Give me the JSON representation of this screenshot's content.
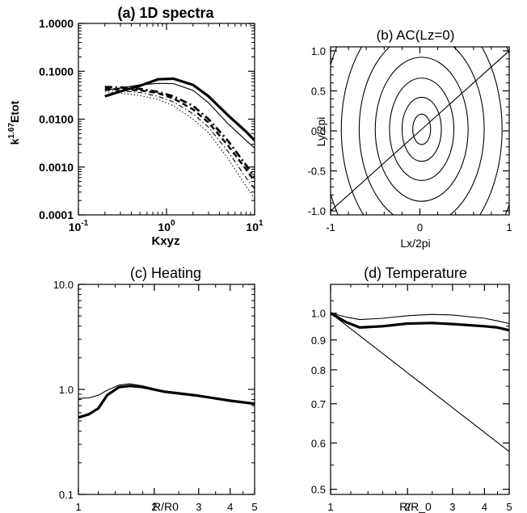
{
  "chart_data": [
    {
      "id": "a",
      "type": "line",
      "title": "(a) 1D spectra",
      "xlabel": "Kxyz",
      "ylabel_base": "k",
      "ylabel_sup": "1.67",
      "ylabel_tail": "Etot",
      "xscale": "log",
      "yscale": "log",
      "xlim": [
        0.1,
        10
      ],
      "ylim": [
        0.0001,
        1.0
      ],
      "xticks": [
        {
          "v": 0.1,
          "base": "10",
          "exp": "-1"
        },
        {
          "v": 1,
          "base": "10",
          "exp": "0"
        },
        {
          "v": 10,
          "base": "10",
          "exp": "1"
        }
      ],
      "yticks": [
        {
          "v": 1.0,
          "label": "1.0000"
        },
        {
          "v": 0.1,
          "label": "0.1000"
        },
        {
          "v": 0.01,
          "label": "0.0100"
        },
        {
          "v": 0.001,
          "label": "0.0010"
        },
        {
          "v": 0.0001,
          "label": "0.0001"
        }
      ],
      "series": [
        {
          "style": "solid-thick",
          "x": [
            0.2,
            0.3,
            0.5,
            0.8,
            1.2,
            2,
            3,
            5,
            8,
            10
          ],
          "y": [
            0.03,
            0.038,
            0.05,
            0.068,
            0.07,
            0.052,
            0.03,
            0.012,
            0.0055,
            0.0036
          ]
        },
        {
          "style": "solid-thin",
          "x": [
            0.2,
            0.3,
            0.5,
            0.8,
            1.2,
            2,
            3,
            5,
            8,
            10
          ],
          "y": [
            0.04,
            0.045,
            0.052,
            0.056,
            0.055,
            0.04,
            0.022,
            0.008,
            0.0036,
            0.0025
          ]
        },
        {
          "style": "dashdot-thick",
          "x": [
            0.2,
            0.3,
            0.5,
            0.8,
            1.2,
            2,
            3,
            5,
            8,
            10
          ],
          "y": [
            0.047,
            0.046,
            0.043,
            0.037,
            0.03,
            0.019,
            0.01,
            0.0035,
            0.0011,
            0.0006
          ]
        },
        {
          "style": "dashed-thick",
          "x": [
            0.2,
            0.3,
            0.5,
            0.8,
            1.2,
            2,
            3,
            5,
            8,
            10
          ],
          "y": [
            0.043,
            0.042,
            0.04,
            0.035,
            0.027,
            0.016,
            0.0085,
            0.0028,
            0.0009,
            0.0005
          ]
        },
        {
          "style": "dashdot-thin",
          "x": [
            0.2,
            0.3,
            0.5,
            0.8,
            1.2,
            2,
            3,
            5,
            8,
            10
          ],
          "y": [
            0.04,
            0.039,
            0.036,
            0.03,
            0.023,
            0.013,
            0.0068,
            0.0021,
            0.0006,
            0.00035
          ]
        },
        {
          "style": "dotted-thin",
          "x": [
            0.2,
            0.3,
            0.5,
            0.8,
            1.2,
            2,
            3,
            5,
            8,
            10
          ],
          "y": [
            0.037,
            0.035,
            0.031,
            0.026,
            0.019,
            0.01,
            0.0052,
            0.0015,
            0.0004,
            0.00022
          ]
        }
      ]
    },
    {
      "id": "b",
      "type": "contour",
      "title": "(b) AC(Lz=0)",
      "xlabel": "Lx/2pi",
      "ylabel": "Ly/2pi",
      "xlim": [
        -1,
        1
      ],
      "ylim": [
        -1.05,
        1.05
      ],
      "xticks": [
        {
          "v": -1,
          "label": "-1"
        },
        {
          "v": 0,
          "label": "0"
        },
        {
          "v": 1,
          "label": "1"
        }
      ],
      "yticks": [
        {
          "v": 1.0,
          "label": "1.0"
        },
        {
          "v": 0.5,
          "label": "0.5"
        },
        {
          "v": 0.0,
          "label": "0.0"
        },
        {
          "v": -0.5,
          "label": "-0.5"
        },
        {
          "v": -1.0,
          "label": "-1.0"
        }
      ],
      "center": [
        0.02,
        0.02
      ],
      "ellipses": [
        {
          "rx": 0.1,
          "ry": 0.19
        },
        {
          "rx": 0.22,
          "ry": 0.4
        },
        {
          "rx": 0.36,
          "ry": 0.64
        },
        {
          "rx": 0.52,
          "ry": 0.9
        },
        {
          "rx": 0.7,
          "ry": 1.2
        },
        {
          "rx": 0.9,
          "ry": 1.55
        },
        {
          "rx": 1.12,
          "ry": 1.95
        }
      ],
      "diagonal": {
        "x": [
          -1,
          1
        ],
        "y": [
          -1.0,
          1.0
        ]
      }
    },
    {
      "id": "c",
      "type": "line",
      "title": "(c) Heating",
      "xlabel": "R/R0",
      "xscale": "log",
      "yscale": "log",
      "xlim": [
        1,
        5
      ],
      "ylim": [
        0.1,
        10
      ],
      "xticks": [
        {
          "v": 1,
          "label": "1"
        },
        {
          "v": 2,
          "label": "2"
        },
        {
          "v": 3,
          "label": "3"
        },
        {
          "v": 4,
          "label": "4"
        },
        {
          "v": 5,
          "label": "5"
        }
      ],
      "yticks": [
        {
          "v": 10,
          "label": "10.0"
        },
        {
          "v": 1,
          "label": "1.0"
        },
        {
          "v": 0.1,
          "label": "0.1"
        }
      ],
      "series": [
        {
          "style": "solid-thick",
          "x": [
            1,
            1.1,
            1.2,
            1.3,
            1.45,
            1.6,
            1.8,
            2.2,
            3,
            4,
            5
          ],
          "y": [
            0.54,
            0.58,
            0.66,
            0.88,
            1.05,
            1.08,
            1.05,
            0.95,
            0.87,
            0.78,
            0.73
          ]
        },
        {
          "style": "solid-thin",
          "x": [
            1,
            1.1,
            1.2,
            1.3,
            1.45,
            1.6,
            1.8,
            2.2,
            3,
            4,
            5
          ],
          "y": [
            0.82,
            0.83,
            0.88,
            0.98,
            1.1,
            1.13,
            1.08,
            0.96,
            0.87,
            0.78,
            0.73
          ]
        }
      ]
    },
    {
      "id": "d",
      "type": "line",
      "title": "(d) Temperature",
      "xlabel": "R/R_0",
      "xscale": "log",
      "yscale": "log",
      "xlim": [
        1,
        5
      ],
      "ylim": [
        0.49,
        1.12
      ],
      "xticks": [
        {
          "v": 1,
          "label": "1"
        },
        {
          "v": 2,
          "label": "2"
        },
        {
          "v": 3,
          "label": "3"
        },
        {
          "v": 4,
          "label": "4"
        },
        {
          "v": 5,
          "label": "5"
        }
      ],
      "yticks": [
        {
          "v": 1.0,
          "label": "1.0"
        },
        {
          "v": 0.9,
          "label": "0.9"
        },
        {
          "v": 0.8,
          "label": "0.8"
        },
        {
          "v": 0.7,
          "label": "0.7"
        },
        {
          "v": 0.6,
          "label": "0.6"
        },
        {
          "v": 0.5,
          "label": "0.5"
        }
      ],
      "series": [
        {
          "style": "solid-thick",
          "x": [
            1,
            1.15,
            1.3,
            1.6,
            2,
            2.5,
            3,
            4,
            4.5,
            5
          ],
          "y": [
            1.0,
            0.965,
            0.945,
            0.95,
            0.96,
            0.962,
            0.958,
            0.95,
            0.945,
            0.935
          ]
        },
        {
          "style": "solid-thin",
          "x": [
            1,
            1.15,
            1.3,
            1.6,
            2,
            2.5,
            3,
            4,
            4.5,
            5
          ],
          "y": [
            1.0,
            0.985,
            0.975,
            0.98,
            0.99,
            0.995,
            0.993,
            0.98,
            0.97,
            0.96
          ]
        },
        {
          "style": "solid-thin",
          "x": [
            1,
            5
          ],
          "y": [
            1.0,
            0.58
          ]
        }
      ]
    }
  ]
}
